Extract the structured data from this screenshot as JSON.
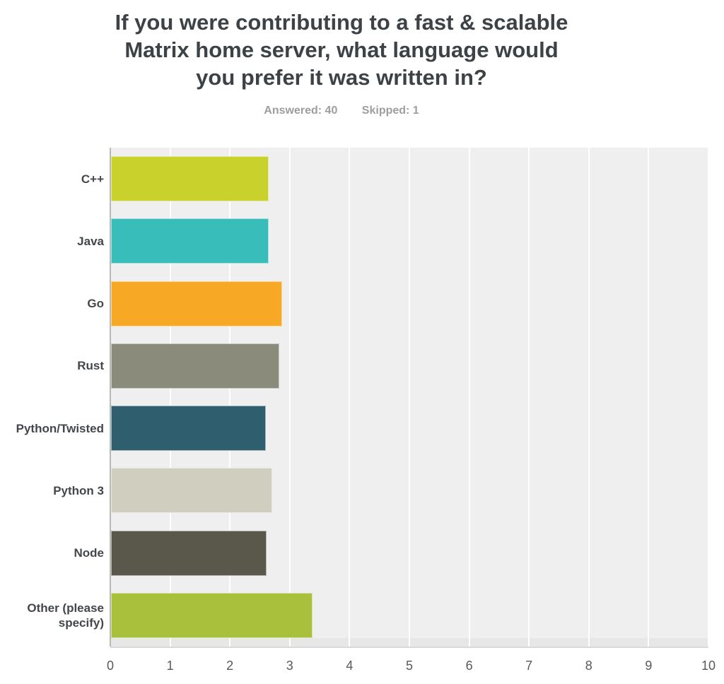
{
  "header": {
    "title_lines": [
      "If you were contributing to a fast & scalable",
      "Matrix home server, what language would",
      "you prefer it was written in?"
    ],
    "answered_label": "Answered: 40",
    "skipped_label": "Skipped: 1"
  },
  "chart_data": {
    "type": "bar",
    "orientation": "horizontal",
    "title": "If you were contributing to a fast & scalable Matrix home server, what language would you prefer it was written in?",
    "answered": 40,
    "skipped": 1,
    "categories": [
      "C++",
      "Java",
      "Go",
      "Rust",
      "Python/Twisted",
      "Python 3",
      "Node",
      "Other (please specify)"
    ],
    "values": [
      2.65,
      2.65,
      2.87,
      2.82,
      2.6,
      2.71,
      2.61,
      3.38
    ],
    "bar_colors": [
      "#c9d22d",
      "#39bdba",
      "#f7a824",
      "#8b8b7c",
      "#2f5f6f",
      "#d0cebf",
      "#5a584a",
      "#a8c03c"
    ],
    "xlim": [
      0,
      10
    ],
    "x_ticks": [
      "0",
      "1",
      "2",
      "3",
      "4",
      "5",
      "6",
      "7",
      "8",
      "9",
      "10"
    ],
    "grid": true,
    "legend": false,
    "plot_bg_color": "#efefef",
    "gridline_color": "#ffffff",
    "axis_line_color": "#b9b9b9",
    "title_color": "#3d4247",
    "stats_color": "#9e9e9e",
    "category_label_color": "#43474b",
    "tick_label_color": "#55595e"
  }
}
